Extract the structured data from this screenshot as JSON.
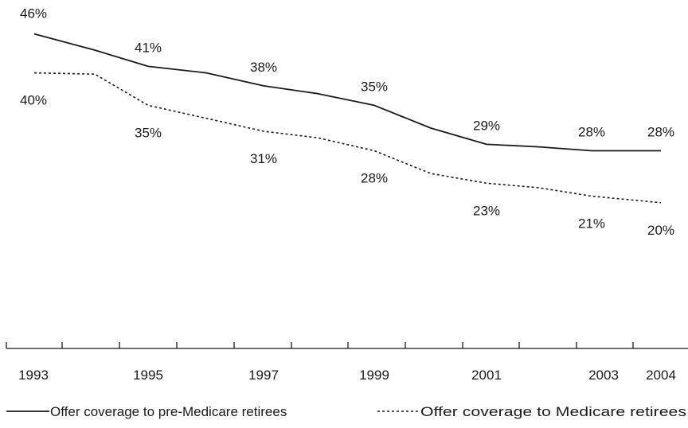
{
  "chart_data": {
    "type": "line",
    "x": [
      1993,
      1994,
      1995,
      1996,
      1997,
      1998,
      1999,
      2000,
      2001,
      2002,
      2003,
      2004
    ],
    "xticks": [
      "1993",
      "1995",
      "1997",
      "1999",
      "2001",
      "2003",
      "2004"
    ],
    "tick_years": [
      1993,
      1994,
      1995,
      1996,
      1997,
      1998,
      1999,
      2000,
      2001,
      2002,
      2003,
      2004
    ],
    "series": [
      {
        "name": "Offer coverage to pre-Medicare retirees",
        "style": "solid",
        "color": "#1a1a1a",
        "x": [
          1993,
          1994,
          1995,
          1996,
          1997,
          1998,
          1999,
          2000,
          2001,
          2002,
          2003,
          2004
        ],
        "values": [
          46,
          43.5,
          41,
          40,
          38,
          36.8,
          35,
          31.5,
          29,
          28.6,
          28,
          28
        ],
        "labels": [
          {
            "x": 1993,
            "text": "46%"
          },
          {
            "x": 1995,
            "text": "41%"
          },
          {
            "x": 1997,
            "text": "38%"
          },
          {
            "x": 1999,
            "text": "35%"
          },
          {
            "x": 2001,
            "text": "29%"
          },
          {
            "x": 2003,
            "text": "28%"
          },
          {
            "x": 2004,
            "text": "28%"
          }
        ]
      },
      {
        "name": "Offer coverage to Medicare retirees",
        "style": "dashed",
        "color": "#1a1a1a",
        "x": [
          1993,
          1994,
          1995,
          1996,
          1997,
          1998,
          1999,
          2000,
          2001,
          2002,
          2003,
          2004
        ],
        "values": [
          40,
          39.8,
          35,
          33,
          31,
          30,
          28,
          24.5,
          23,
          22.3,
          21,
          20
        ],
        "labels": [
          {
            "x": 1993,
            "text": "40%"
          },
          {
            "x": 1995,
            "text": "35%"
          },
          {
            "x": 1997,
            "text": "31%"
          },
          {
            "x": 1999,
            "text": "28%"
          },
          {
            "x": 2001,
            "text": "23%"
          },
          {
            "x": 2003,
            "text": "21%"
          },
          {
            "x": 2004,
            "text": "20%"
          }
        ]
      }
    ],
    "ylim": [
      0,
      50
    ],
    "grid": false,
    "legend_position": "bottom"
  }
}
